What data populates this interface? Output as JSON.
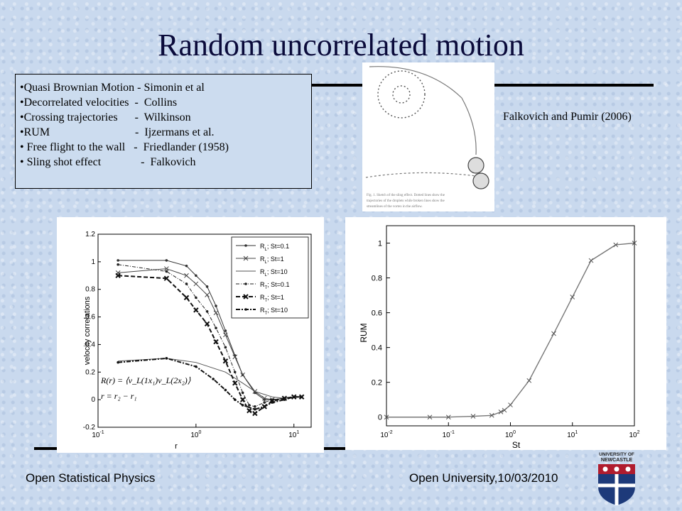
{
  "slide": {
    "title": "Random uncorrelated motion",
    "bullets": [
      "•Quasi Brownian Motion - Simonin et al",
      "•Decorrelated velocities  -  Collins",
      "•Crossing trajectories      -  Wilkinson",
      "•RUM                              -  Ijzermans et al.",
      "• Free flight to the wall   -  Friedlander (1958)",
      "• Sling shot effect              -  Falkovich"
    ],
    "citation": "Falkovich and Pumir (2006)",
    "sketch_caption": "Fig. 1. Sketch of the sling effect. Dotted lines show the trajectories of the droplets while broken lines show the streamlines of the vortex in the airflow.",
    "footer_left": "Open Statistical Physics",
    "footer_right": "Open University,10/03/2010",
    "logo": {
      "lines": [
        "UNIVERSITY OF",
        "NEWCASTLE"
      ],
      "colors": {
        "crimson": "#b01c2e",
        "navy": "#1d3a7a"
      }
    }
  },
  "chart_data": [
    {
      "type": "line",
      "xscale": "log",
      "xlabel": "r",
      "ylabel": "velocity correlations",
      "xlim": [
        0.1,
        15
      ],
      "ylim": [
        -0.2,
        1.2
      ],
      "yticks": [
        "-0.2",
        "0",
        "0.2",
        "0.4",
        "0.6",
        "0.8",
        "1",
        "1.2"
      ],
      "xticks": [
        {
          "v": 0.1,
          "b": "10",
          "e": "-1"
        },
        {
          "v": 1,
          "b": "10",
          "e": "0"
        },
        {
          "v": 10,
          "b": "10",
          "e": "1"
        }
      ],
      "legend_position": "top-right",
      "series": [
        {
          "name": "R_L; St=0.1",
          "label_main": "R",
          "label_sub": "L",
          "label_rest": "; St=0.1",
          "style": "solid-dot",
          "x": [
            0.16,
            0.5,
            0.8,
            1.0,
            1.3,
            1.6,
            2.0,
            2.5,
            3.0,
            4.0,
            5.0,
            6.0,
            8.0,
            10.0,
            12.0
          ],
          "y": [
            1.01,
            1.01,
            0.97,
            0.9,
            0.82,
            0.68,
            0.5,
            0.32,
            0.18,
            0.05,
            0.0,
            0.0,
            0.01,
            0.02,
            0.02
          ]
        },
        {
          "name": "R_L; St=1",
          "label_main": "R",
          "label_sub": "L",
          "label_rest": "; St=1",
          "style": "solid-x",
          "x": [
            0.16,
            0.5,
            0.8,
            1.0,
            1.3,
            1.6,
            2.0,
            2.5,
            3.0,
            4.0,
            5.0,
            6.0,
            8.0,
            10.0,
            12.0
          ],
          "y": [
            0.92,
            0.95,
            0.9,
            0.84,
            0.76,
            0.63,
            0.47,
            0.31,
            0.18,
            0.06,
            0.01,
            0.0,
            0.01,
            0.02,
            0.02
          ]
        },
        {
          "name": "R_L; St=10",
          "label_main": "R",
          "label_sub": "L",
          "label_rest": "; St=10",
          "style": "solid",
          "x": [
            0.16,
            0.5,
            1.0,
            2.0,
            3.0,
            4.0,
            6.0,
            8.0,
            10.0,
            12.0
          ],
          "y": [
            0.28,
            0.3,
            0.27,
            0.2,
            0.12,
            0.06,
            0.02,
            0.01,
            0.02,
            0.02
          ]
        },
        {
          "name": "R_T; St=0.1",
          "label_main": "R",
          "label_sub": "T",
          "label_rest": "; St=0.1",
          "style": "dashdot-dot",
          "x": [
            0.16,
            0.5,
            0.8,
            1.0,
            1.3,
            1.6,
            2.0,
            2.5,
            3.0,
            3.5,
            4.0,
            5.0,
            6.0,
            8.0,
            10.0,
            12.0
          ],
          "y": [
            0.98,
            0.93,
            0.84,
            0.74,
            0.64,
            0.52,
            0.38,
            0.2,
            0.05,
            -0.04,
            -0.05,
            -0.02,
            0.0,
            0.01,
            0.02,
            0.02
          ]
        },
        {
          "name": "R_T; St=1",
          "label_main": "R",
          "label_sub": "T",
          "label_rest": "; St=1",
          "style": "dashed-x",
          "x": [
            0.16,
            0.5,
            0.8,
            1.0,
            1.3,
            1.6,
            2.0,
            2.5,
            3.0,
            3.5,
            4.0,
            5.0,
            6.0,
            8.0,
            10.0,
            12.0
          ],
          "y": [
            0.9,
            0.88,
            0.74,
            0.65,
            0.55,
            0.42,
            0.28,
            0.12,
            0.0,
            -0.08,
            -0.1,
            -0.05,
            -0.01,
            0.01,
            0.02,
            0.02
          ]
        },
        {
          "name": "R_T; St=10",
          "label_main": "R",
          "label_sub": "T",
          "label_rest": "; St=10",
          "style": "dashdot",
          "x": [
            0.16,
            0.5,
            1.0,
            1.5,
            2.0,
            2.5,
            3.0,
            4.0,
            5.0,
            6.0,
            8.0,
            10.0,
            12.0
          ],
          "y": [
            0.27,
            0.3,
            0.24,
            0.15,
            0.07,
            0.0,
            -0.04,
            -0.07,
            -0.05,
            -0.02,
            0.0,
            0.02,
            0.02
          ]
        }
      ],
      "equations": [
        "R(r) = ⟨v_L(1x₁)v_L(2x₂)⟩",
        "r = r₂ − r₁"
      ]
    },
    {
      "type": "line",
      "xscale": "log",
      "xlabel": "St",
      "ylabel": "RUM",
      "xlim": [
        0.01,
        100
      ],
      "ylim": [
        -0.05,
        1.1
      ],
      "yticks": [
        "0",
        "0.2",
        "0.4",
        "0.6",
        "0.8",
        "1"
      ],
      "xticks": [
        {
          "v": 0.01,
          "b": "10",
          "e": "-2"
        },
        {
          "v": 0.1,
          "b": "10",
          "e": "-1"
        },
        {
          "v": 1,
          "b": "10",
          "e": "0"
        },
        {
          "v": 10,
          "b": "10",
          "e": "1"
        },
        {
          "v": 100,
          "b": "10",
          "e": "2"
        }
      ],
      "series": [
        {
          "x": [
            0.01,
            0.05,
            0.1,
            0.25,
            0.5,
            0.7,
            0.8,
            1.0,
            2.0,
            5.0,
            10.0,
            20.0,
            50.0,
            100.0
          ],
          "y": [
            0.0,
            0.0,
            0.0,
            0.005,
            0.01,
            0.03,
            0.04,
            0.07,
            0.21,
            0.48,
            0.69,
            0.9,
            0.99,
            1.0
          ]
        }
      ]
    }
  ]
}
